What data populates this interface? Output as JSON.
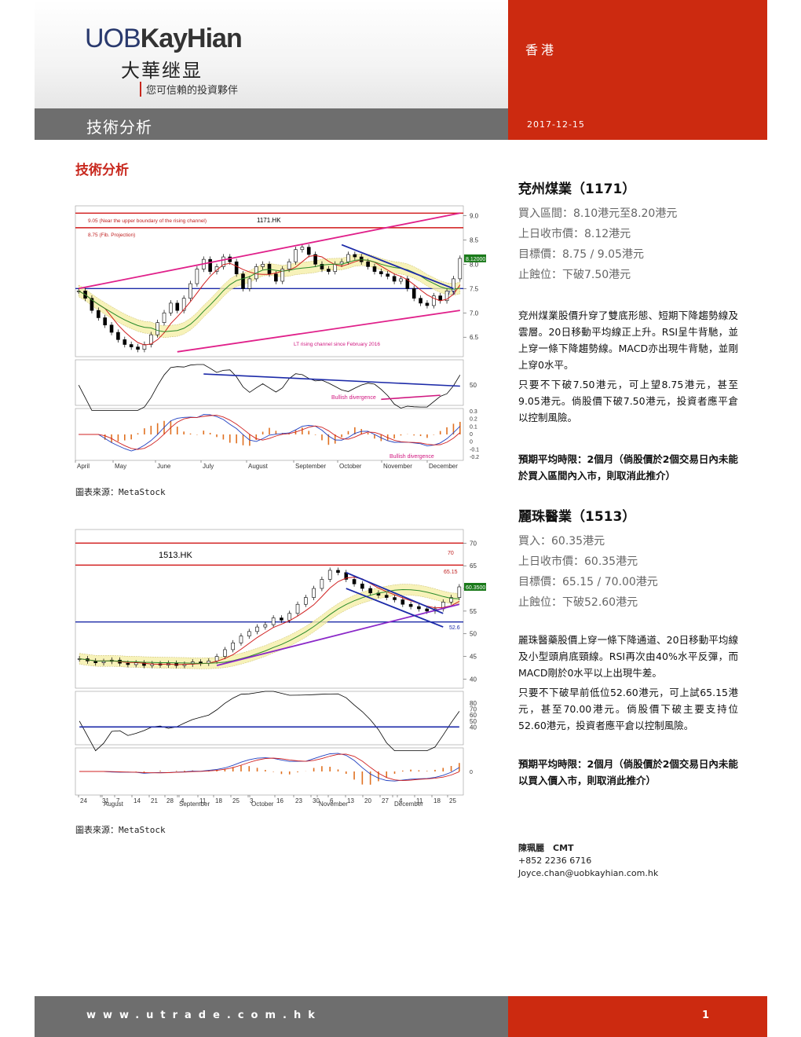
{
  "header": {
    "logo_en_part1": "UOB",
    "logo_en_part2": "KayHian",
    "logo_cn": "大華继显",
    "tagline": "您可信賴的投資夥伴",
    "region": "香港",
    "date": "2017-12-15",
    "title": "技術分析"
  },
  "section_title": "技術分析",
  "stocks": [
    {
      "name": "兗州煤業（1171）",
      "buy": "買入區間：8.10港元至8.20港元",
      "close": "上日收市價：8.12港元",
      "target": "目標價：8.75 / 9.05港元",
      "stop": "止蝕位：下破7.50港元",
      "para1": "兗州煤業股價升穿了雙底形態、短期下降趨勢線及雲層。20日移動平均線正上升。RSI呈牛背馳，並上穿一條下降趨勢線。MACD亦出現牛背馳，並剛上穿0水平。",
      "para2": "只要不下破7.50港元，可上望8.75港元，甚至9.05港元。倘股價下破7.50港元，投資者應平倉以控制風險。",
      "period": "預期平均時限：2個月（倘股價於2個交易日內未能於買入區間內入市，則取消此推介）"
    },
    {
      "name": "麗珠醫業（1513）",
      "buy": "買入：60.35港元",
      "close": "上日收市價：60.35港元",
      "target": "目標價：65.15 / 70.00港元",
      "stop": "止蝕位：下破52.60港元",
      "para1": "麗珠醫藥股價上穿一條下降通道、20日移動平均線及小型頭肩底頸線。RSI再次由40%水平反彈，而MACD剛於0水平以上出現牛差。",
      "para2": "只要不下破早前低位52.60港元，可上試65.15港元，甚至70.00港元。倘股價下破主要支持位52.60港元，投資者應平倉以控制風險。",
      "period": "預期平均時限：2個月（倘股價於2個交易日內未能以買入價入市，則取消此推介）"
    }
  ],
  "analyst": {
    "name": "陳珮麗　CMT",
    "phone": "+852 2236 6716",
    "email": "Joyce.chan@uobkayhian.com.hk"
  },
  "footer": {
    "url": "www.utrade.com.hk",
    "page": "1"
  },
  "chart_data": [
    {
      "type": "line",
      "ticker": "1171.HK",
      "source": "圖表來源：MetaStock",
      "months": [
        "April",
        "May",
        "June",
        "July",
        "August",
        "September",
        "October",
        "November",
        "December"
      ],
      "price_axis": [
        6.5,
        7.0,
        7.5,
        8.0,
        8.5,
        9.0
      ],
      "price_ylim": [
        6.1,
        9.2
      ],
      "rsi_axis": [
        50
      ],
      "macd_axis": [
        0.3,
        0.2,
        0.1,
        0.0,
        -0.0,
        -0.1,
        -0.2
      ],
      "annotations": {
        "upper_line": "9.05 (Near the upper boundary of the rising channel)",
        "fib_line": "8.75 (Fib. Projection)",
        "channel": "LT rising channel since February 2016",
        "rsi_div": "Bullish divergence",
        "macd_div": "Bullish divergence",
        "support_label": "7.5",
        "last_price": "8.12000"
      },
      "levels": {
        "upper": 9.05,
        "fib": 8.75,
        "support": 7.5
      },
      "close": [
        7.45,
        7.3,
        7.05,
        6.9,
        6.75,
        6.6,
        6.45,
        6.35,
        6.3,
        6.25,
        6.35,
        6.55,
        6.8,
        7.0,
        7.2,
        7.05,
        7.3,
        7.6,
        7.9,
        8.1,
        7.85,
        7.95,
        8.15,
        8.05,
        7.8,
        7.5,
        7.7,
        7.95,
        8.0,
        7.8,
        7.65,
        7.9,
        8.05,
        8.3,
        8.35,
        8.2,
        8.0,
        7.9,
        7.85,
        8.0,
        8.05,
        8.2,
        8.15,
        8.05,
        7.95,
        7.85,
        7.8,
        7.75,
        7.65,
        7.7,
        7.5,
        7.3,
        7.2,
        7.15,
        7.35,
        7.25,
        7.45,
        7.7,
        8.12
      ]
    },
    {
      "type": "line",
      "ticker": "1513.HK",
      "source": "圖表來源：MetaStock",
      "months": [
        "August",
        "September",
        "October",
        "November",
        "December"
      ],
      "day_ticks": [
        "24",
        "31",
        "7",
        "14",
        "21",
        "28",
        "4",
        "11",
        "18",
        "25",
        "3",
        "16",
        "23",
        "30",
        "6",
        "13",
        "20",
        "27",
        "4",
        "11",
        "18",
        "25"
      ],
      "price_axis": [
        40,
        45,
        50,
        55,
        60,
        65,
        70
      ],
      "price_ylim": [
        38,
        73
      ],
      "rsi_axis": [
        40,
        50,
        60,
        70,
        80
      ],
      "macd_axis": [
        0
      ],
      "annotations": {
        "target1_label": "65.15",
        "target2_label": "70",
        "support_label": "52.6",
        "last_price": "60.3500"
      },
      "levels": {
        "target2": 70.0,
        "target1": 65.15,
        "support": 52.6
      },
      "close": [
        44.5,
        44.0,
        43.6,
        43.9,
        44.2,
        43.5,
        43.2,
        43.6,
        43.0,
        43.4,
        43.1,
        43.5,
        43.0,
        43.3,
        43.8,
        43.5,
        44.0,
        45.0,
        46.5,
        48.0,
        49.5,
        50.5,
        51.5,
        52.0,
        53.5,
        53.0,
        54.5,
        56.5,
        58.0,
        60.0,
        62.0,
        64.0,
        63.5,
        62.0,
        61.0,
        60.0,
        59.0,
        58.5,
        58.0,
        57.5,
        56.5,
        56.0,
        55.5,
        55.0,
        55.5,
        57.0,
        58.0,
        60.35
      ]
    }
  ]
}
